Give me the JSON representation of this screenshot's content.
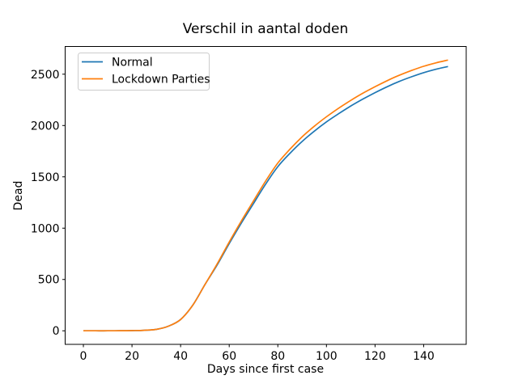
{
  "figure": {
    "background": "#ffffff",
    "spine_color": "#000000",
    "legend_border_color": "#cccccc"
  },
  "chart_data": {
    "type": "line",
    "title": "Verschil in aantal doden",
    "xlabel": "Days since first case",
    "ylabel": "Dead",
    "grid": false,
    "legend_position": "upper left",
    "xlim": [
      -7.5,
      157.5
    ],
    "ylim": [
      -132,
      2770
    ],
    "xticks": [
      0,
      20,
      40,
      60,
      80,
      100,
      120,
      140
    ],
    "yticks": [
      0,
      500,
      1000,
      1500,
      2000,
      2500
    ],
    "x": [
      0,
      5,
      10,
      15,
      20,
      25,
      30,
      35,
      40,
      45,
      50,
      55,
      60,
      65,
      70,
      75,
      80,
      85,
      90,
      95,
      100,
      105,
      110,
      115,
      120,
      125,
      130,
      135,
      140,
      145,
      150
    ],
    "series": [
      {
        "name": "Normal",
        "color": "#1f77b4",
        "values": [
          0,
          0,
          0,
          1,
          2,
          5,
          14,
          45,
          110,
          250,
          450,
          640,
          850,
          1050,
          1240,
          1430,
          1600,
          1730,
          1845,
          1945,
          2035,
          2115,
          2190,
          2258,
          2320,
          2378,
          2430,
          2475,
          2515,
          2548,
          2575
        ]
      },
      {
        "name": "Lockdown Parties",
        "color": "#ff7f0e",
        "values": [
          0,
          0,
          0,
          1,
          2,
          5,
          14,
          45,
          110,
          250,
          450,
          650,
          865,
          1070,
          1265,
          1460,
          1635,
          1770,
          1890,
          1993,
          2085,
          2168,
          2245,
          2315,
          2378,
          2437,
          2490,
          2536,
          2577,
          2610,
          2638
        ]
      }
    ]
  }
}
